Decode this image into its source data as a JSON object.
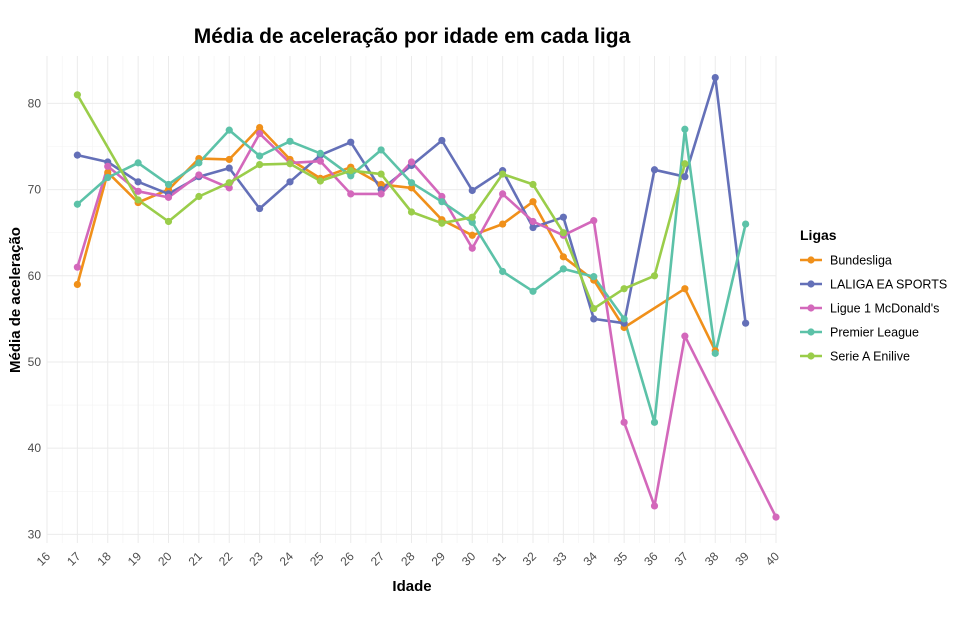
{
  "chart_data": {
    "type": "line",
    "title": "Média de aceleração por idade em cada liga",
    "xlabel": "Idade",
    "ylabel": "Média de aceleração",
    "xlim": [
      16,
      40
    ],
    "ylim": [
      29,
      85.5
    ],
    "x_ticks": [
      16,
      17,
      18,
      19,
      20,
      21,
      22,
      23,
      24,
      25,
      26,
      27,
      28,
      29,
      30,
      31,
      32,
      33,
      34,
      35,
      36,
      37,
      38,
      39,
      40
    ],
    "y_ticks": [
      30,
      40,
      50,
      60,
      70,
      80
    ],
    "grid": true,
    "legend": {
      "title": "Ligas",
      "position": "right"
    },
    "series": [
      {
        "name": "Bundesliga",
        "color": "#F0901A",
        "x": [
          17,
          18,
          19,
          20,
          21,
          22,
          23,
          24,
          25,
          26,
          27,
          28,
          29,
          30,
          31,
          32,
          33,
          34,
          35,
          37,
          38
        ],
        "y": [
          59.0,
          72.0,
          68.5,
          70.0,
          73.6,
          73.5,
          77.2,
          73.5,
          71.3,
          72.6,
          70.6,
          70.2,
          66.5,
          64.7,
          66.0,
          68.6,
          62.2,
          59.5,
          54.0,
          58.5,
          51.3
        ]
      },
      {
        "name": "LALIGA EA SPORTS",
        "color": "#6470B8",
        "x": [
          17,
          18,
          19,
          20,
          21,
          22,
          23,
          24,
          25,
          26,
          27,
          28,
          29,
          30,
          31,
          32,
          33,
          34,
          35,
          36,
          37,
          38,
          39
        ],
        "y": [
          74.0,
          73.2,
          70.9,
          69.5,
          71.5,
          72.5,
          67.8,
          70.9,
          74.0,
          75.5,
          70.0,
          72.8,
          75.7,
          69.9,
          72.2,
          65.6,
          66.8,
          55.0,
          54.5,
          72.3,
          71.5,
          83.0,
          54.5
        ]
      },
      {
        "name": "Ligue 1 McDonald's",
        "color": "#D368BB",
        "x": [
          17,
          18,
          19,
          20,
          21,
          22,
          23,
          24,
          25,
          26,
          27,
          28,
          29,
          30,
          31,
          32,
          33,
          34,
          35,
          36,
          37,
          40
        ],
        "y": [
          61.0,
          72.7,
          69.8,
          69.1,
          71.7,
          70.2,
          76.5,
          73.1,
          73.3,
          69.5,
          69.5,
          73.2,
          69.2,
          63.2,
          69.5,
          66.3,
          64.7,
          66.4,
          43.0,
          33.3,
          53.0,
          32.0
        ]
      },
      {
        "name": "Premier League",
        "color": "#5CC2A8",
        "x": [
          17,
          18,
          19,
          20,
          21,
          22,
          23,
          24,
          25,
          26,
          27,
          28,
          29,
          30,
          31,
          32,
          33,
          34,
          35,
          36,
          37,
          38,
          39
        ],
        "y": [
          68.3,
          71.4,
          73.1,
          70.6,
          73.1,
          76.9,
          73.9,
          75.6,
          74.2,
          71.6,
          74.6,
          70.8,
          68.6,
          66.2,
          60.5,
          58.2,
          60.8,
          59.9,
          55.0,
          43.0,
          77.0,
          51.0,
          66.0
        ]
      },
      {
        "name": "Serie A Enilive",
        "color": "#9ACD4A",
        "x": [
          17,
          19,
          20,
          21,
          22,
          23,
          24,
          25,
          26,
          27,
          28,
          29,
          30,
          31,
          32,
          33,
          34,
          35,
          36,
          37
        ],
        "y": [
          81.0,
          68.8,
          66.3,
          69.2,
          70.8,
          72.9,
          73.0,
          71.0,
          72.2,
          71.8,
          67.4,
          66.1,
          66.8,
          71.8,
          70.6,
          65.0,
          56.2,
          58.5,
          60.0,
          73.0
        ]
      }
    ]
  }
}
